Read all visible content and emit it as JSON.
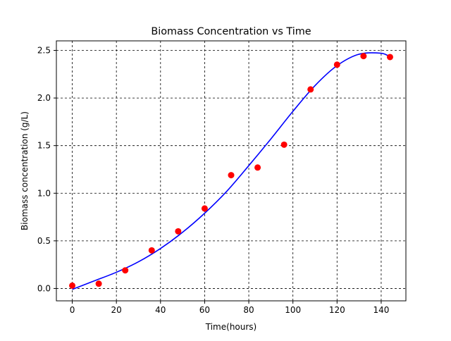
{
  "chart_data": {
    "type": "scatter",
    "title": "Biomass Concentration vs Time",
    "xlabel": "Time(hours)",
    "ylabel": "Biomass concentration (g/L)",
    "xlim": [
      -7.2,
      151.2
    ],
    "ylim": [
      -0.13,
      2.6
    ],
    "xticks": [
      0,
      20,
      40,
      60,
      80,
      100,
      120,
      140
    ],
    "yticks": [
      0.0,
      0.5,
      1.0,
      1.5,
      2.0,
      2.5
    ],
    "xtick_labels": [
      "0",
      "20",
      "40",
      "60",
      "80",
      "100",
      "120",
      "140"
    ],
    "ytick_labels": [
      "0.0",
      "0.5",
      "1.0",
      "1.5",
      "2.0",
      "2.5"
    ],
    "grid": true,
    "grid_style": "dashed",
    "series": [
      {
        "kind": "scatter",
        "color": "#ff0000",
        "x": [
          0,
          12,
          24,
          36,
          48,
          60,
          72,
          84,
          96,
          108,
          120,
          132,
          144
        ],
        "y": [
          0.03,
          0.05,
          0.19,
          0.4,
          0.6,
          0.84,
          1.19,
          1.27,
          1.51,
          2.09,
          2.35,
          2.44,
          2.43
        ]
      },
      {
        "kind": "line",
        "color": "#0000ff",
        "x": [
          0,
          10,
          20,
          30,
          40,
          50,
          60,
          70,
          80,
          90,
          100,
          110,
          120,
          130,
          140,
          144
        ],
        "y": [
          -0.01,
          0.08,
          0.17,
          0.28,
          0.42,
          0.59,
          0.79,
          1.02,
          1.29,
          1.57,
          1.86,
          2.13,
          2.34,
          2.46,
          2.47,
          2.43
        ]
      }
    ]
  }
}
